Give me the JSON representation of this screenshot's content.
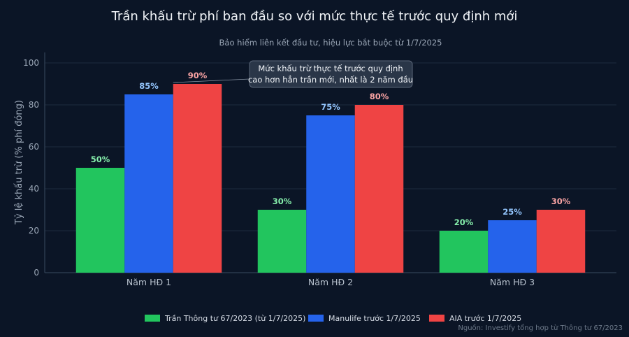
{
  "chart_data": {
    "type": "bar",
    "title": "Trần khấu trừ phí ban đầu so với mức thực tế trước quy định mới",
    "subtitle": "Bảo hiểm liên kết đầu tư, hiệu lực bắt buộc từ 1/7/2025",
    "xlabel": "",
    "ylabel": "Tỷ lệ khấu trừ (% phí đóng)",
    "ylim": [
      0,
      100
    ],
    "yticks": [
      0,
      20,
      40,
      60,
      80,
      100
    ],
    "categories": [
      "Năm HĐ 1",
      "Năm HĐ 2",
      "Năm HĐ 3"
    ],
    "series": [
      {
        "name": "Trần Thông tư 67/2023 (từ 1/7/2025)",
        "values": [
          50,
          30,
          20
        ],
        "color": "#22c55e",
        "label_color": "#86efac"
      },
      {
        "name": "Manulife trước 1/7/2025",
        "values": [
          85,
          75,
          25
        ],
        "color": "#2563eb",
        "label_color": "#93c5fd"
      },
      {
        "name": "AIA trước 1/7/2025",
        "values": [
          90,
          80,
          30
        ],
        "color": "#ef4444",
        "label_color": "#fca5a5"
      }
    ],
    "value_suffix": "%",
    "grid": true,
    "legend_position": "bottom",
    "annotation": {
      "lines": [
        "Mức khấu trừ thực tế trước quy định",
        "cao hơn hẳn trần mới, nhất là 2 năm đầu"
      ],
      "points_to": {
        "category": "Năm HĐ 1",
        "series": "AIA trước 1/7/2025",
        "value": 90
      }
    },
    "source": "Nguồn: Investify tổng hợp từ Thông tư 67/2023"
  },
  "colors": {
    "background": "#0b1526",
    "grid": "#1c2a3f",
    "axis": "#3a4a60"
  }
}
